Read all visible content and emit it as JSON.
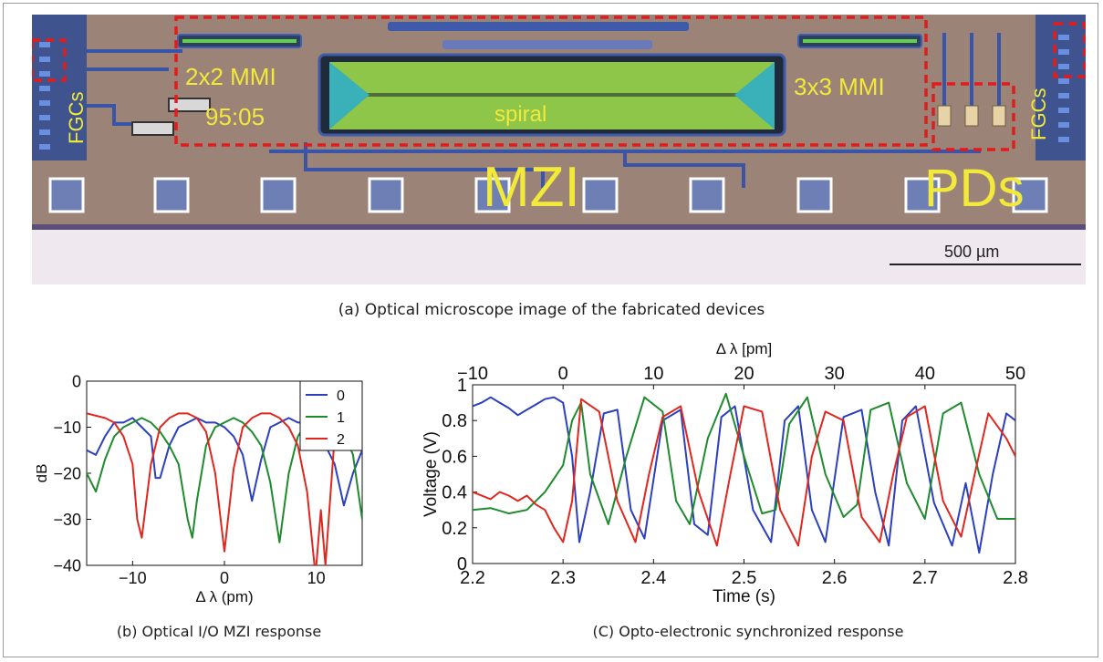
{
  "microscope": {
    "labels": {
      "fgc_left": "FGCs",
      "mmi22": "2x2 MMI",
      "ratio": "95:05",
      "spiral": "spiral",
      "mmi33": "3x3 MMI",
      "fgc_right": "FGCs",
      "mzi": "MZI",
      "pds": "PDs",
      "scale": "500 µm"
    }
  },
  "captions": {
    "a": "(a) Optical microscope image of the fabricated devices",
    "b": "(b) Optical I/O MZI response",
    "c": "(C) Opto-electronic synchronized response"
  },
  "colors": {
    "blue": "#2b3fbf",
    "green": "#1f8a2e",
    "red": "#e0271f",
    "label_yellow": "#f2e93a",
    "box_red": "#e31b1b"
  },
  "chart_data": [
    {
      "type": "line",
      "xlabel": "Δ λ (pm)",
      "ylabel": "dB",
      "xlim": [
        -15,
        15
      ],
      "ylim": [
        -40,
        0
      ],
      "xticks": [
        -10,
        0,
        10
      ],
      "yticks": [
        0,
        -10,
        -20,
        -30,
        -40
      ],
      "legend": "top-right",
      "series": [
        {
          "name": "0",
          "color": "#2b3fbf",
          "x": [
            -15,
            -14,
            -13,
            -12,
            -11,
            -10,
            -9,
            -8,
            -7.5,
            -7,
            -6,
            -5,
            -4,
            -3,
            -2,
            -1,
            0,
            1,
            2,
            3,
            4,
            5,
            6,
            7,
            8,
            9,
            10,
            11,
            12,
            13,
            14,
            15
          ],
          "y": [
            -15,
            -16,
            -12,
            -9,
            -9,
            -8,
            -10,
            -12,
            -21,
            -21,
            -14,
            -10,
            -9,
            -8,
            -9,
            -9,
            -10,
            -12,
            -16,
            -26,
            -17,
            -10,
            -9,
            -8,
            -9,
            -9,
            -10,
            -14,
            -18,
            -27,
            -20,
            -15
          ]
        },
        {
          "name": "1",
          "color": "#1f8a2e",
          "x": [
            -15,
            -14,
            -13,
            -12,
            -11,
            -10,
            -9,
            -8,
            -7,
            -6,
            -5,
            -4,
            -3.5,
            -3,
            -2,
            -1,
            0,
            1,
            2,
            3,
            4,
            5,
            6,
            7,
            8,
            9,
            10,
            11,
            12,
            13,
            14,
            15
          ],
          "y": [
            -20,
            -24,
            -17,
            -12,
            -10,
            -9,
            -8,
            -9,
            -11,
            -14,
            -18,
            -30,
            -34,
            -26,
            -14,
            -10,
            -9,
            -8,
            -9,
            -11,
            -14,
            -22,
            -35,
            -20,
            -12,
            -9,
            -8,
            -8,
            -9,
            -11,
            -16,
            -30
          ]
        },
        {
          "name": "2",
          "color": "#e0271f",
          "x": [
            -15,
            -13,
            -12,
            -11,
            -10,
            -9.5,
            -9,
            -8,
            -7,
            -6,
            -5,
            -4,
            -3,
            -2,
            -1,
            0,
            1,
            2,
            3,
            4,
            5,
            6,
            7,
            8,
            9,
            9.8,
            10,
            10.5,
            11,
            12,
            13,
            14,
            15
          ],
          "y": [
            -7,
            -8,
            -9,
            -12,
            -18,
            -30,
            -34,
            -18,
            -10,
            -8,
            -7,
            -7,
            -8,
            -11,
            -20,
            -37,
            -19,
            -10,
            -8,
            -7,
            -7,
            -8,
            -10,
            -14,
            -24,
            -40,
            -40,
            -28,
            -40,
            -12,
            -9,
            -8,
            -7
          ]
        }
      ]
    },
    {
      "type": "line",
      "xlabel": "Time (s)",
      "ylabel": "Voltage (V)",
      "top_xlabel": "Δ λ [pm]",
      "xlim": [
        2.2,
        2.8
      ],
      "ylim": [
        0,
        1
      ],
      "xticks": [
        2.2,
        2.3,
        2.4,
        2.5,
        2.6,
        2.7,
        2.8
      ],
      "top_xticks": [
        -10,
        0,
        10,
        20,
        30,
        40,
        50
      ],
      "yticks": [
        0,
        0.2,
        0.4,
        0.6,
        0.8,
        1
      ],
      "grid": false,
      "series": [
        {
          "color": "#2b3fbf",
          "x": [
            2.2,
            2.21,
            2.22,
            2.23,
            2.24,
            2.25,
            2.26,
            2.27,
            2.28,
            2.29,
            2.3,
            2.31,
            2.318,
            2.33,
            2.345,
            2.36,
            2.375,
            2.39,
            2.41,
            2.43,
            2.445,
            2.46,
            2.475,
            2.49,
            2.51,
            2.53,
            2.545,
            2.56,
            2.575,
            2.59,
            2.61,
            2.63,
            2.645,
            2.66,
            2.675,
            2.69,
            2.71,
            2.73,
            2.745,
            2.76,
            2.775,
            2.79,
            2.8
          ],
          "y": [
            0.88,
            0.9,
            0.93,
            0.9,
            0.87,
            0.83,
            0.86,
            0.89,
            0.92,
            0.93,
            0.9,
            0.6,
            0.12,
            0.4,
            0.84,
            0.86,
            0.3,
            0.14,
            0.8,
            0.86,
            0.22,
            0.16,
            0.82,
            0.88,
            0.3,
            0.12,
            0.8,
            0.88,
            0.3,
            0.12,
            0.82,
            0.86,
            0.4,
            0.1,
            0.8,
            0.88,
            0.34,
            0.1,
            0.45,
            0.06,
            0.5,
            0.84,
            0.8
          ]
        },
        {
          "color": "#1f8a2e",
          "x": [
            2.2,
            2.22,
            2.24,
            2.26,
            2.28,
            2.3,
            2.31,
            2.32,
            2.33,
            2.35,
            2.37,
            2.39,
            2.41,
            2.425,
            2.44,
            2.46,
            2.48,
            2.5,
            2.52,
            2.535,
            2.55,
            2.57,
            2.59,
            2.61,
            2.625,
            2.64,
            2.66,
            2.68,
            2.7,
            2.72,
            2.74,
            2.76,
            2.78,
            2.8
          ],
          "y": [
            0.3,
            0.31,
            0.28,
            0.3,
            0.4,
            0.55,
            0.8,
            0.9,
            0.5,
            0.22,
            0.6,
            0.93,
            0.85,
            0.35,
            0.22,
            0.7,
            0.95,
            0.6,
            0.28,
            0.3,
            0.78,
            0.93,
            0.5,
            0.26,
            0.33,
            0.86,
            0.9,
            0.45,
            0.25,
            0.84,
            0.9,
            0.5,
            0.25,
            0.25
          ]
        },
        {
          "color": "#e0271f",
          "x": [
            2.2,
            2.22,
            2.23,
            2.24,
            2.25,
            2.26,
            2.27,
            2.28,
            2.29,
            2.3,
            2.31,
            2.32,
            2.34,
            2.36,
            2.38,
            2.395,
            2.41,
            2.43,
            2.45,
            2.47,
            2.485,
            2.5,
            2.52,
            2.54,
            2.56,
            2.575,
            2.59,
            2.61,
            2.63,
            2.65,
            2.665,
            2.68,
            2.7,
            2.72,
            2.74,
            2.755,
            2.77,
            2.79,
            2.8
          ],
          "y": [
            0.4,
            0.36,
            0.4,
            0.38,
            0.35,
            0.38,
            0.33,
            0.3,
            0.2,
            0.12,
            0.35,
            0.92,
            0.85,
            0.35,
            0.12,
            0.5,
            0.82,
            0.88,
            0.4,
            0.1,
            0.5,
            0.88,
            0.85,
            0.3,
            0.1,
            0.6,
            0.85,
            0.8,
            0.26,
            0.12,
            0.5,
            0.82,
            0.88,
            0.35,
            0.15,
            0.5,
            0.84,
            0.7,
            0.6
          ]
        }
      ]
    }
  ]
}
